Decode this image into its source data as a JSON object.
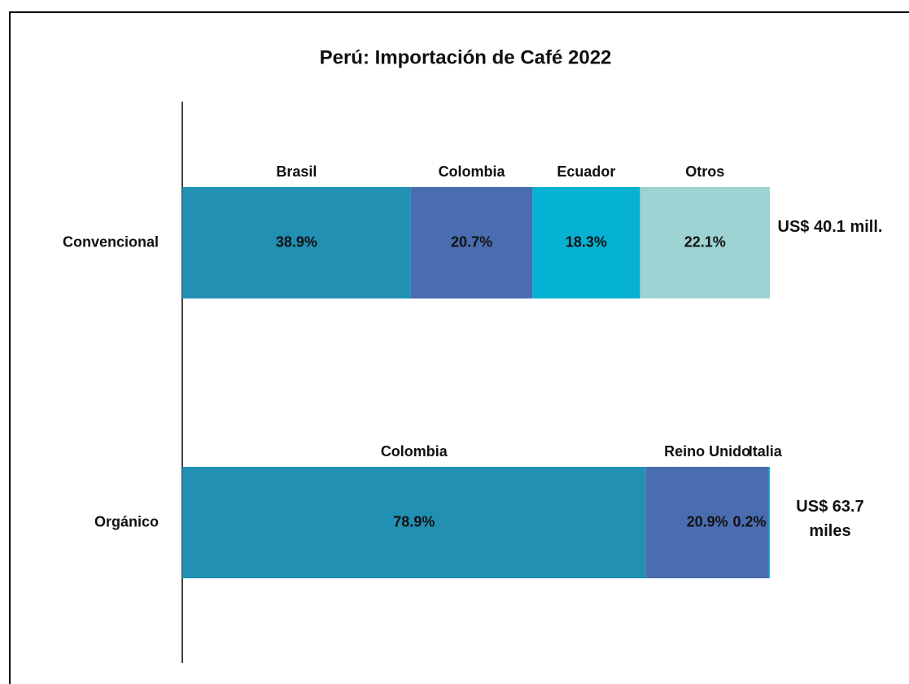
{
  "chart_data": {
    "type": "bar",
    "orientation": "horizontal",
    "stacked": true,
    "title": "Perú: Importación de Café 2022",
    "xlim": [
      0,
      100
    ],
    "bars": [
      {
        "category": "Convencional",
        "total_label": "US$ 40.1 mill.",
        "segments": [
          {
            "name": "Brasil",
            "color": "#2190b2",
            "value": 38.9,
            "value_label": "38.9%"
          },
          {
            "name": "Colombia",
            "color": "#4a6cb0",
            "value": 20.7,
            "value_label": "20.7%"
          },
          {
            "name": "Ecuador",
            "color": "#06b2d4",
            "value": 18.3,
            "value_label": "18.3%"
          },
          {
            "name": "Otros",
            "color": "#9ed3d3",
            "value": 22.1,
            "value_label": "22.1%"
          }
        ]
      },
      {
        "category": "Orgánico",
        "total_label": "US$ 63.7 miles",
        "segments": [
          {
            "name": "Colombia",
            "color": "#2190b2",
            "value": 78.9,
            "value_label": "78.9%"
          },
          {
            "name": "Reino Unido",
            "color": "#4a6cb0",
            "value": 20.9,
            "value_label": "20.9%"
          },
          {
            "name": "Italia",
            "color": "#06b2d4",
            "value": 0.2,
            "value_label": "0.2%"
          }
        ]
      }
    ]
  }
}
